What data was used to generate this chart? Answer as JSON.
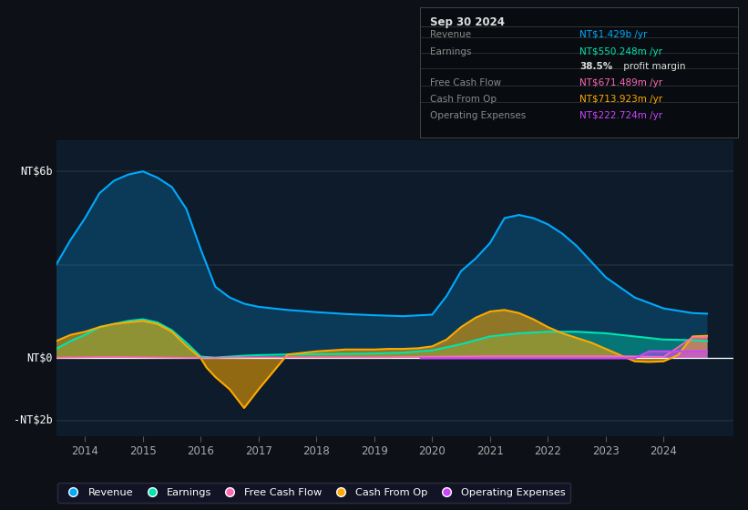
{
  "bg_color": "#0d1117",
  "plot_bg_color": "#0d1b2a",
  "y_lim": [
    -2.5,
    7.0
  ],
  "x_lim": [
    2013.5,
    2025.2
  ],
  "x_ticks": [
    2014,
    2015,
    2016,
    2017,
    2018,
    2019,
    2020,
    2021,
    2022,
    2023,
    2024
  ],
  "y_labels": [
    {
      "y": 6.0,
      "label": "NT$6b"
    },
    {
      "y": 0.0,
      "label": "NT$0"
    },
    {
      "y": -2.0,
      "label": "-NT$2b"
    }
  ],
  "legend_items": [
    {
      "label": "Revenue",
      "color": "#00aaff"
    },
    {
      "label": "Earnings",
      "color": "#00e5b0"
    },
    {
      "label": "Free Cash Flow",
      "color": "#ff69b4"
    },
    {
      "label": "Cash From Op",
      "color": "#ffaa00"
    },
    {
      "label": "Operating Expenses",
      "color": "#cc44ff"
    }
  ],
  "info_box": {
    "title": "Sep 30 2024",
    "rows": [
      {
        "label": "Revenue",
        "value": "NT$1.429b",
        "unit": " /yr",
        "color": "#00aaff"
      },
      {
        "label": "Earnings",
        "value": "NT$550.248m",
        "unit": " /yr",
        "color": "#00e5b0"
      },
      {
        "label": "",
        "bold": "38.5%",
        "rest": " profit margin",
        "color": "#ffffff"
      },
      {
        "label": "Free Cash Flow",
        "value": "NT$671.489m",
        "unit": " /yr",
        "color": "#ff69b4"
      },
      {
        "label": "Cash From Op",
        "value": "NT$713.923m",
        "unit": " /yr",
        "color": "#ffaa00"
      },
      {
        "label": "Operating Expenses",
        "value": "NT$222.724m",
        "unit": " /yr",
        "color": "#cc44ff"
      }
    ]
  },
  "revenue_x": [
    2013.5,
    2013.75,
    2014.0,
    2014.25,
    2014.5,
    2014.75,
    2015.0,
    2015.25,
    2015.5,
    2015.75,
    2016.0,
    2016.25,
    2016.5,
    2016.75,
    2017.0,
    2017.5,
    2018.0,
    2018.5,
    2019.0,
    2019.5,
    2020.0,
    2020.25,
    2020.5,
    2020.75,
    2021.0,
    2021.25,
    2021.5,
    2021.75,
    2022.0,
    2022.25,
    2022.5,
    2022.75,
    2023.0,
    2023.5,
    2024.0,
    2024.5,
    2024.75
  ],
  "revenue_y": [
    3.0,
    3.8,
    4.5,
    5.3,
    5.7,
    5.9,
    6.0,
    5.8,
    5.5,
    4.8,
    3.5,
    2.3,
    1.95,
    1.75,
    1.65,
    1.55,
    1.48,
    1.42,
    1.38,
    1.35,
    1.4,
    2.0,
    2.8,
    3.2,
    3.7,
    4.5,
    4.6,
    4.5,
    4.3,
    4.0,
    3.6,
    3.1,
    2.6,
    1.95,
    1.6,
    1.45,
    1.43
  ],
  "earnings_x": [
    2013.5,
    2013.75,
    2014.0,
    2014.25,
    2014.5,
    2014.75,
    2015.0,
    2015.25,
    2015.5,
    2015.75,
    2016.0,
    2016.25,
    2016.5,
    2016.75,
    2017.0,
    2017.5,
    2018.0,
    2018.5,
    2019.0,
    2019.5,
    2020.0,
    2020.5,
    2021.0,
    2021.5,
    2022.0,
    2022.5,
    2023.0,
    2023.25,
    2023.5,
    2023.75,
    2024.0,
    2024.5,
    2024.75
  ],
  "earnings_y": [
    0.3,
    0.55,
    0.75,
    1.0,
    1.1,
    1.2,
    1.25,
    1.15,
    0.9,
    0.5,
    0.05,
    0.02,
    0.05,
    0.08,
    0.1,
    0.12,
    0.13,
    0.14,
    0.15,
    0.18,
    0.25,
    0.45,
    0.7,
    0.8,
    0.85,
    0.85,
    0.8,
    0.75,
    0.7,
    0.65,
    0.6,
    0.58,
    0.55
  ],
  "cashop_x": [
    2013.5,
    2013.75,
    2014.0,
    2014.25,
    2014.5,
    2014.75,
    2015.0,
    2015.25,
    2015.5,
    2015.75,
    2016.0,
    2016.1,
    2016.25,
    2016.5,
    2016.75,
    2017.0,
    2017.5,
    2018.0,
    2018.5,
    2019.0,
    2019.25,
    2019.5,
    2019.75,
    2020.0,
    2020.25,
    2020.5,
    2020.75,
    2021.0,
    2021.25,
    2021.5,
    2021.75,
    2022.0,
    2022.25,
    2022.5,
    2022.75,
    2023.0,
    2023.25,
    2023.5,
    2023.75,
    2024.0,
    2024.25,
    2024.5,
    2024.75
  ],
  "cashop_y": [
    0.55,
    0.75,
    0.85,
    1.0,
    1.1,
    1.15,
    1.2,
    1.1,
    0.85,
    0.4,
    0.0,
    -0.3,
    -0.6,
    -1.0,
    -1.6,
    -1.0,
    0.12,
    0.22,
    0.28,
    0.28,
    0.3,
    0.3,
    0.32,
    0.38,
    0.6,
    1.0,
    1.3,
    1.5,
    1.55,
    1.45,
    1.25,
    1.0,
    0.8,
    0.65,
    0.5,
    0.3,
    0.1,
    -0.1,
    -0.12,
    -0.1,
    0.1,
    0.7,
    0.72
  ],
  "fcf_x": [
    2013.5,
    2014.0,
    2014.5,
    2015.0,
    2015.5,
    2016.0,
    2016.5,
    2017.0,
    2017.5,
    2018.0,
    2018.5,
    2019.0,
    2019.25,
    2019.5,
    2020.0,
    2020.5,
    2021.0,
    2021.5,
    2022.0,
    2022.5,
    2023.0,
    2023.5,
    2023.75,
    2024.0,
    2024.5,
    2024.75
  ],
  "fcf_y": [
    0.02,
    0.03,
    0.04,
    0.03,
    0.02,
    0.01,
    0.02,
    0.03,
    0.03,
    0.03,
    0.03,
    0.03,
    0.03,
    0.04,
    0.05,
    0.06,
    0.07,
    0.07,
    0.07,
    0.07,
    0.07,
    0.06,
    0.05,
    0.04,
    0.67,
    0.67
  ],
  "opex_x": [
    2019.8,
    2020.0,
    2020.5,
    2021.0,
    2021.5,
    2022.0,
    2022.5,
    2023.0,
    2023.5,
    2023.75,
    2024.0,
    2024.5,
    2024.75
  ],
  "opex_y": [
    0.0,
    0.0,
    0.0,
    0.0,
    0.0,
    0.0,
    0.0,
    0.0,
    0.0,
    0.22,
    0.22,
    0.22,
    0.22
  ]
}
